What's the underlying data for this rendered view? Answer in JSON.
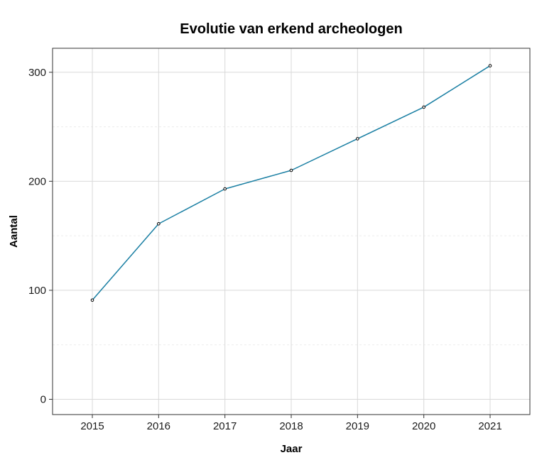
{
  "chart_data": {
    "type": "line",
    "title": "Evolutie van erkend archeologen",
    "xlabel": "Jaar",
    "ylabel": "Aantal",
    "x": [
      "2015",
      "2016",
      "2017",
      "2018",
      "2019",
      "2020",
      "2021"
    ],
    "series": [
      {
        "values": [
          91,
          161,
          193,
          210,
          239,
          268,
          306
        ],
        "color": "#1a7fa3"
      }
    ],
    "xlim": [
      2014.4,
      2021.6
    ],
    "ylim": [
      -14,
      322
    ],
    "yticks": [
      0,
      100,
      200,
      300
    ],
    "yticks_minor": [
      50,
      150,
      250
    ],
    "grid": true,
    "legend": "none",
    "colors": {
      "line": "#1a7fa3",
      "point": "#000000",
      "grid_major": "#d9d9d9",
      "grid_minor": "#ececec",
      "frame": "#333333"
    }
  }
}
